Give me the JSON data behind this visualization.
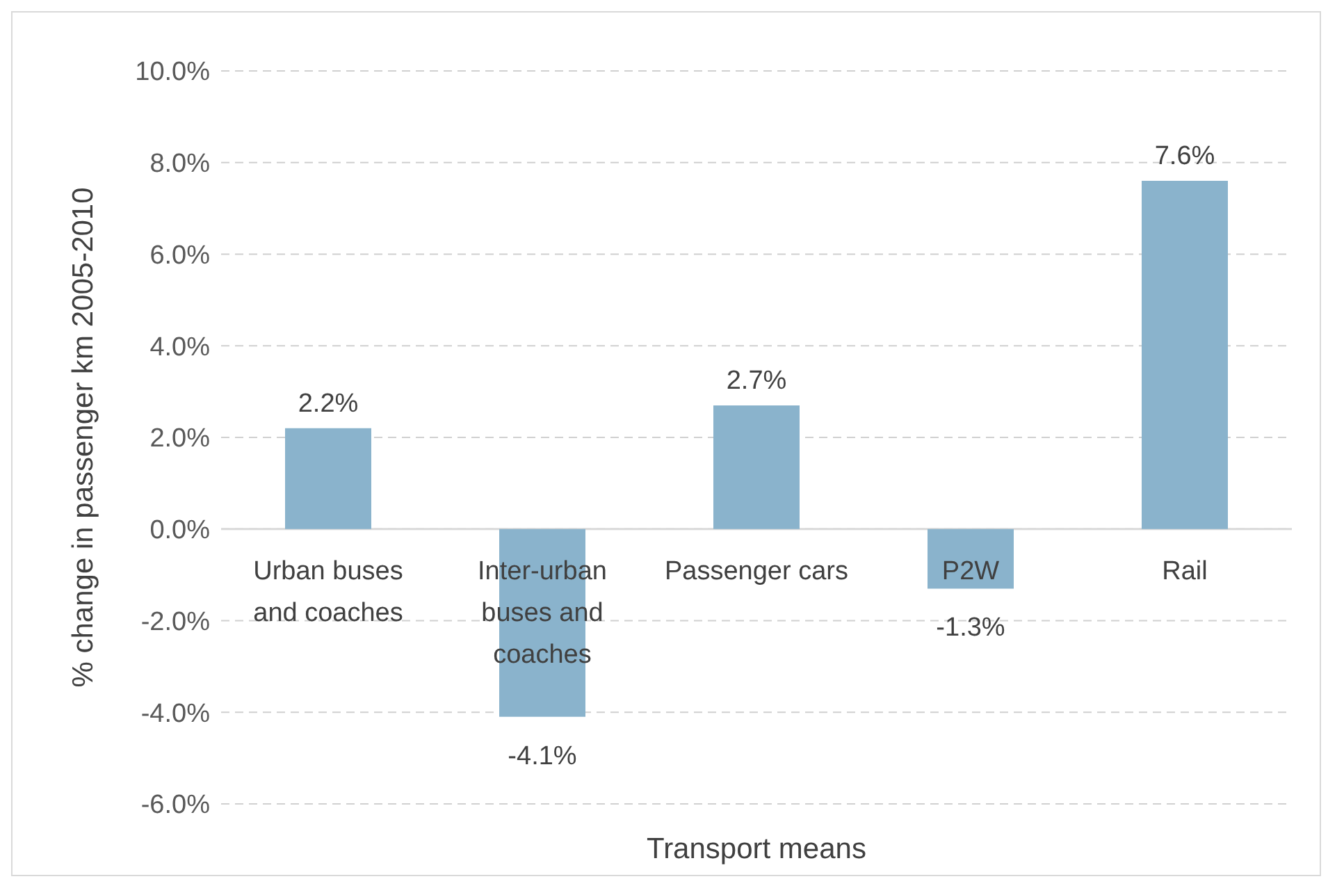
{
  "chart_data": {
    "type": "bar",
    "xlabel": "Transport means",
    "ylabel": "% change in passenger km 2005-2010",
    "categories": [
      "Urban buses and coaches",
      "Inter-urban buses and coaches",
      "Passenger cars",
      "P2W",
      "Rail"
    ],
    "values": [
      2.2,
      -4.1,
      2.7,
      -1.3,
      7.6
    ],
    "value_labels": [
      "2.2%",
      "-4.1%",
      "2.7%",
      "-1.3%",
      "7.6%"
    ],
    "color": "#8ab3cc",
    "ylim": [
      -6,
      10
    ],
    "yticks": [
      {
        "value": -6,
        "label": "-6.0%"
      },
      {
        "value": -4,
        "label": "-4.0%"
      },
      {
        "value": -2,
        "label": "-2.0%"
      },
      {
        "value": 0,
        "label": "0.0%"
      },
      {
        "value": 2,
        "label": "2.0%"
      },
      {
        "value": 4,
        "label": "4.0%"
      },
      {
        "value": 6,
        "label": "6.0%"
      },
      {
        "value": 8,
        "label": "8.0%"
      },
      {
        "value": 10,
        "label": "10.0%"
      }
    ],
    "grid": "y"
  }
}
